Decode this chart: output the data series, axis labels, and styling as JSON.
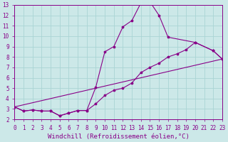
{
  "title": "",
  "xlabel": "Windchill (Refroidissement éolien,°C)",
  "xlim": [
    0,
    23
  ],
  "ylim": [
    2,
    13
  ],
  "xticks": [
    0,
    1,
    2,
    3,
    4,
    5,
    6,
    7,
    8,
    9,
    10,
    11,
    12,
    13,
    14,
    15,
    16,
    17,
    18,
    19,
    20,
    21,
    22,
    23
  ],
  "yticks": [
    2,
    3,
    4,
    5,
    6,
    7,
    8,
    9,
    10,
    11,
    12,
    13
  ],
  "bg_color": "#cce8e8",
  "line_color": "#880088",
  "grid_color": "#aad4d4",
  "line1_x": [
    0,
    1,
    2,
    3,
    4,
    5,
    6,
    7,
    8,
    9,
    10,
    11,
    12,
    13,
    14,
    15,
    16,
    17,
    20,
    22,
    23
  ],
  "line1_y": [
    3.2,
    2.8,
    2.9,
    2.8,
    2.8,
    2.35,
    2.6,
    2.85,
    2.85,
    5.1,
    8.5,
    9.0,
    10.9,
    11.5,
    13.2,
    13.3,
    12.0,
    9.9,
    9.4,
    8.6,
    7.8
  ],
  "line2_x": [
    0,
    1,
    2,
    3,
    4,
    5,
    6,
    7,
    8,
    9,
    10,
    11,
    12,
    13,
    14,
    15,
    16,
    17,
    18,
    19,
    20,
    22,
    23
  ],
  "line2_y": [
    3.2,
    2.8,
    2.9,
    2.8,
    2.8,
    2.35,
    2.6,
    2.85,
    2.85,
    3.5,
    4.3,
    4.8,
    5.0,
    5.5,
    6.5,
    7.0,
    7.4,
    8.0,
    8.3,
    8.7,
    9.4,
    8.6,
    7.8
  ],
  "line3_x": [
    0,
    23
  ],
  "line3_y": [
    3.2,
    7.8
  ],
  "fontsize_label": 6.5,
  "fontsize_tick": 5.5
}
